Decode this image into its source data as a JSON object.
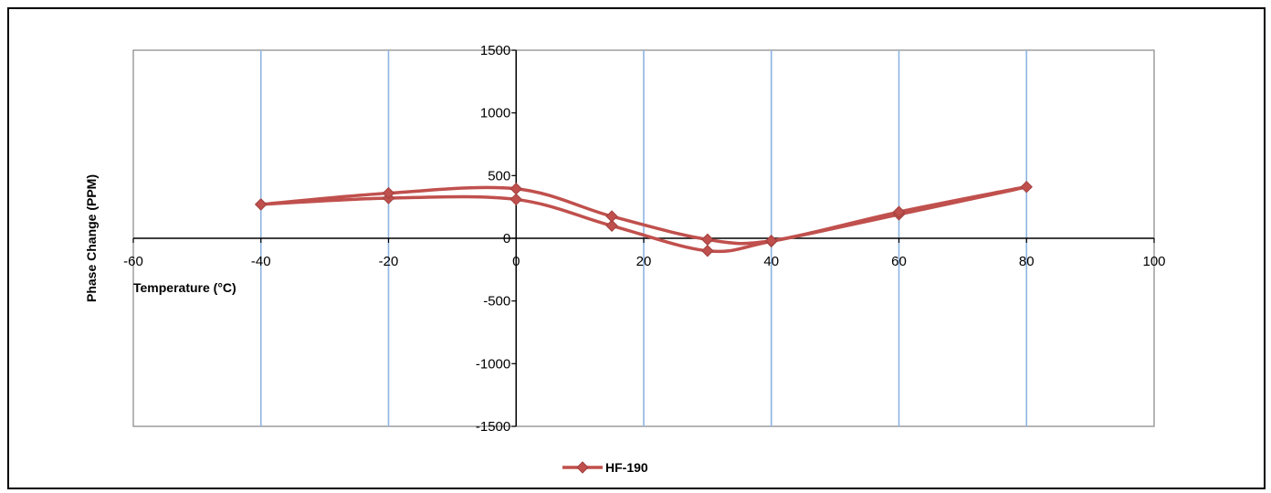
{
  "chart_data": {
    "type": "line",
    "title": "",
    "xlabel": "Temperature (°C)",
    "ylabel": "Phase Change (PPM)",
    "xlim": [
      -60,
      100
    ],
    "ylim": [
      -1500,
      1500
    ],
    "xticks": [
      -60,
      -40,
      -20,
      0,
      20,
      40,
      60,
      80,
      100
    ],
    "yticks": [
      -1500,
      -1000,
      -500,
      0,
      500,
      1000,
      1500
    ],
    "grid": "vertical",
    "legend": "bottom-center",
    "series": [
      {
        "name": "HF-190",
        "color": "#c0504d",
        "marker": "diamond",
        "smooth": true,
        "points": [
          [
            -40,
            270
          ],
          [
            -20,
            320
          ],
          [
            0,
            310
          ],
          [
            15,
            100
          ],
          [
            30,
            -100
          ],
          [
            40,
            -25
          ],
          [
            60,
            190
          ],
          [
            80,
            410
          ],
          [
            60,
            210
          ],
          [
            40,
            -20
          ],
          [
            30,
            -10
          ],
          [
            15,
            175
          ],
          [
            0,
            395
          ],
          [
            -20,
            360
          ],
          [
            -40,
            270
          ]
        ]
      }
    ]
  }
}
